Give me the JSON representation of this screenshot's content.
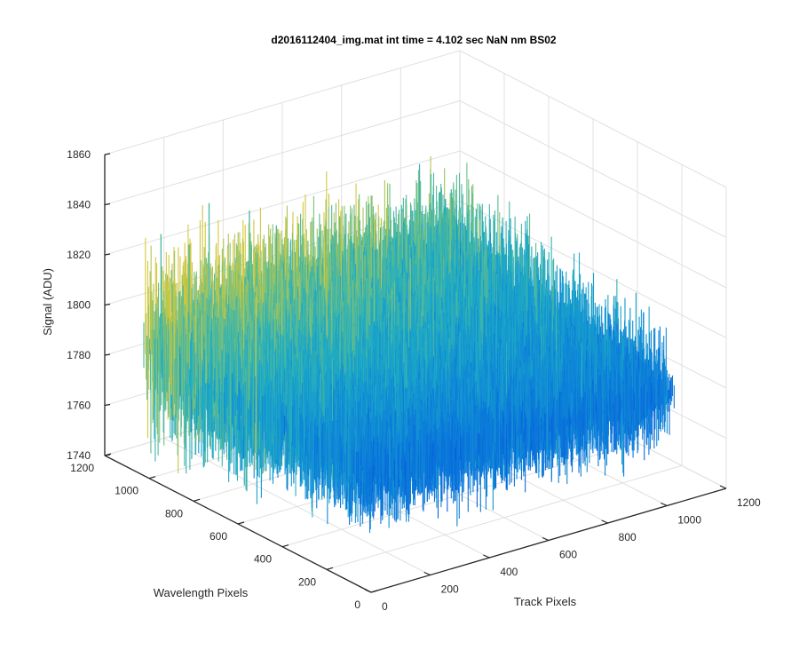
{
  "chart_data": {
    "type": "surface",
    "title": "d2016112404_img.mat int time = 4.102 sec  NaN nm BS02",
    "xlabel": "Track Pixels",
    "ylabel": "Wavelength Pixels",
    "zlabel": "Signal (ADU)",
    "xlim": [
      0,
      1200
    ],
    "ylim": [
      0,
      1200
    ],
    "zlim": [
      1740,
      1860
    ],
    "xticks": [
      "0",
      "200",
      "400",
      "600",
      "800",
      "1000",
      "1200"
    ],
    "yticks": [
      "0",
      "200",
      "400",
      "600",
      "800",
      "1000",
      "1200"
    ],
    "zticks": [
      "1740",
      "1760",
      "1780",
      "1800",
      "1820",
      "1840",
      "1860"
    ],
    "grid": true,
    "colormap": "parula",
    "data_extent": {
      "x": [
        0,
        1024
      ],
      "y": [
        0,
        1024
      ]
    },
    "signal_mean": 1787,
    "signal_range": [
      1748,
      1842
    ],
    "colors": {
      "low": "#0a72de",
      "mid": "#1fa5c9",
      "high": "#c9c83a",
      "axis": "#262626",
      "grid": "#e0e0e0"
    }
  }
}
